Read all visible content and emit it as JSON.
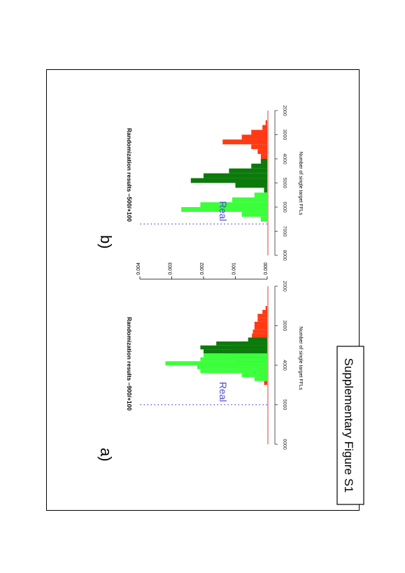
{
  "figure_label": "Supplementary Figure S1",
  "colors": {
    "red": "#ff3a14",
    "dark_green": "#0b7a0b",
    "light_green": "#3cff3c",
    "real_line": "#4b4bd6",
    "baseline": "#d94040"
  },
  "chart_data": [
    {
      "type": "histogram",
      "panel_label": "a)",
      "title": "Randomization results –900/+100",
      "xlabel": "Number of single target FFLs",
      "ylabel": "",
      "xlim": [
        2000,
        6000
      ],
      "ylim": [
        0,
        0.004
      ],
      "x_ticks": [
        "2000",
        "3000",
        "4000",
        "5000",
        "6000"
      ],
      "y_ticks": [
        "0.000",
        "0.001",
        "0.002",
        "0.003",
        "0.004"
      ],
      "annotations": [
        {
          "text": "Real",
          "x": 5000
        }
      ],
      "bin_width": 100,
      "series": [
        {
          "color": "red",
          "bins": [
            [
              2500,
              5e-05
            ],
            [
              2600,
              0.00015
            ],
            [
              2700,
              0.0003
            ],
            [
              2800,
              0.0003
            ],
            [
              2900,
              0.0004
            ],
            [
              3000,
              0.0004
            ],
            [
              3100,
              0.00045
            ],
            [
              3200,
              0.00048
            ],
            [
              3300,
              0.0005
            ],
            [
              3400,
              0.0008
            ],
            [
              3500,
              0.0011
            ],
            [
              3600,
              0.0011
            ],
            [
              3700,
              0.0011
            ],
            [
              3800,
              0.0007
            ],
            [
              3900,
              0.0005
            ],
            [
              4000,
              0.0003
            ],
            [
              4100,
              0.0003
            ],
            [
              4200,
              0.0002
            ],
            [
              4300,
              0.00015
            ],
            [
              4400,
              0.0001
            ]
          ]
        },
        {
          "color": "dark_green",
          "bins": [
            [
              3300,
              0.0006
            ],
            [
              3400,
              0.0016
            ],
            [
              3500,
              0.0021
            ],
            [
              3600,
              0.002
            ],
            [
              3700,
              0.0014
            ],
            [
              3800,
              0.001
            ]
          ]
        },
        {
          "color": "light_green",
          "bins": [
            [
              3700,
              0.002
            ],
            [
              3800,
              0.0021
            ],
            [
              3900,
              0.0032
            ],
            [
              4000,
              0.0022
            ],
            [
              4100,
              0.0021
            ],
            [
              4200,
              0.0008
            ],
            [
              4300,
              0.0004
            ]
          ]
        }
      ]
    },
    {
      "type": "histogram",
      "panel_label": "b)",
      "title": "Randomization results –500/+100",
      "xlabel": "Number of single target FFLs",
      "ylabel": "",
      "xlim": [
        2000,
        8000
      ],
      "ylim": [
        0,
        0.004
      ],
      "x_ticks": [
        "2000",
        "3000",
        "4000",
        "5000",
        "6000",
        "7000",
        "8000"
      ],
      "y_ticks": [
        "0.000",
        "0.001",
        "0.002",
        "0.003",
        "0.004"
      ],
      "annotations": [
        {
          "text": "Real",
          "x": 6700
        }
      ],
      "bin_width": 200,
      "series": [
        {
          "color": "red",
          "bins": [
            [
              2400,
              5e-05
            ],
            [
              2600,
              0.00015
            ],
            [
              2800,
              0.0005
            ],
            [
              3000,
              0.0008
            ],
            [
              3200,
              0.0014
            ],
            [
              3400,
              0.0005
            ],
            [
              3600,
              0.0003
            ],
            [
              3800,
              0.0002
            ],
            [
              4000,
              0.00015
            ],
            [
              4200,
              0.0001
            ]
          ]
        },
        {
          "color": "dark_green",
          "bins": [
            [
              4000,
              0.0002
            ],
            [
              4200,
              0.0005
            ],
            [
              4400,
              0.0012
            ],
            [
              4600,
              0.002
            ],
            [
              4800,
              0.0024
            ],
            [
              5000,
              0.001
            ],
            [
              5200,
              0.0001
            ]
          ]
        },
        {
          "color": "light_green",
          "bins": [
            [
              5400,
              0.0004
            ],
            [
              5600,
              0.0011
            ],
            [
              5800,
              0.0021
            ],
            [
              6000,
              0.0027
            ],
            [
              6200,
              0.0008
            ],
            [
              6400,
              0.0002
            ]
          ]
        }
      ]
    }
  ]
}
